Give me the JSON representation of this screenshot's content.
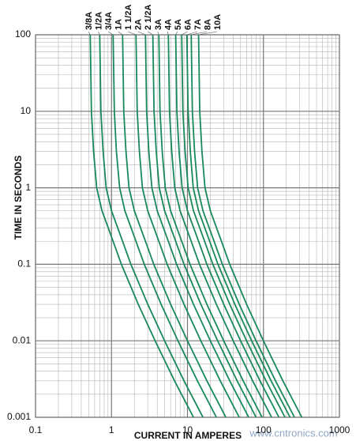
{
  "chart_data": {
    "type": "line",
    "x_label": "CURRENT IN AMPERES",
    "y_label": "TIME IN SECONDS",
    "watermark": "www.cntronics.com",
    "x_scale": "log",
    "y_scale": "log",
    "xlim": [
      0.1,
      1000
    ],
    "ylim": [
      0.001,
      100
    ],
    "xticks": [
      0.1,
      1,
      10,
      100,
      1000
    ],
    "yticks": [
      0.001,
      0.01,
      0.1,
      1,
      10,
      100
    ],
    "grid": true,
    "minor_grid": true,
    "series": [
      {
        "name": "3/8A",
        "color": "#19895c",
        "x": [
          0.525,
          0.544,
          0.581,
          0.638,
          0.75,
          1.05,
          1.35,
          2.25,
          3.75,
          6.75,
          12
        ],
        "values": [
          100,
          10,
          3,
          1,
          0.5,
          0.2,
          0.1,
          0.03,
          0.01,
          0.003,
          0.001
        ]
      },
      {
        "name": "1/2A",
        "color": "#19895c",
        "x": [
          0.7,
          0.725,
          0.775,
          0.85,
          1,
          1.4,
          1.8,
          3,
          5,
          9,
          16
        ],
        "values": [
          100,
          10,
          3,
          1,
          0.5,
          0.2,
          0.1,
          0.03,
          0.01,
          0.003,
          0.001
        ]
      },
      {
        "name": "3/4A",
        "color": "#19895c",
        "x": [
          1.05,
          1.09,
          1.16,
          1.28,
          1.5,
          2.1,
          2.7,
          4.5,
          7.5,
          13.5,
          24
        ],
        "values": [
          100,
          10,
          3,
          1,
          0.5,
          0.2,
          0.1,
          0.03,
          0.01,
          0.003,
          0.001
        ]
      },
      {
        "name": "1A",
        "color": "#19895c",
        "x": [
          1.4,
          1.45,
          1.55,
          1.7,
          2,
          2.8,
          3.6,
          6,
          10,
          18,
          32
        ],
        "values": [
          100,
          10,
          3,
          1,
          0.5,
          0.2,
          0.1,
          0.03,
          0.01,
          0.003,
          0.001
        ]
      },
      {
        "name": "1 1/2A",
        "color": "#19895c",
        "x": [
          2.1,
          2.18,
          2.33,
          2.55,
          3,
          4.2,
          5.4,
          9,
          15,
          27,
          48
        ],
        "values": [
          100,
          10,
          3,
          1,
          0.5,
          0.2,
          0.1,
          0.03,
          0.01,
          0.003,
          0.001
        ]
      },
      {
        "name": "2A",
        "color": "#19895c",
        "x": [
          2.8,
          2.9,
          3.1,
          3.4,
          4,
          5.6,
          7.2,
          12,
          20,
          36,
          64
        ],
        "values": [
          100,
          10,
          3,
          1,
          0.5,
          0.2,
          0.1,
          0.03,
          0.01,
          0.003,
          0.001
        ]
      },
      {
        "name": "2 1/2A",
        "color": "#19895c",
        "x": [
          3.5,
          3.63,
          3.88,
          4.25,
          5,
          7,
          9,
          15,
          25,
          45,
          80
        ],
        "values": [
          100,
          10,
          3,
          1,
          0.5,
          0.2,
          0.1,
          0.03,
          0.01,
          0.003,
          0.001
        ]
      },
      {
        "name": "3A",
        "color": "#19895c",
        "x": [
          4.2,
          4.35,
          4.65,
          5.1,
          6,
          8.4,
          10.8,
          18,
          30,
          54,
          96
        ],
        "values": [
          100,
          10,
          3,
          1,
          0.5,
          0.2,
          0.1,
          0.03,
          0.01,
          0.003,
          0.001
        ]
      },
      {
        "name": "4A",
        "color": "#19895c",
        "x": [
          5.6,
          5.8,
          6.2,
          6.8,
          8,
          11.2,
          14.4,
          24,
          40,
          72,
          128
        ],
        "values": [
          100,
          10,
          3,
          1,
          0.5,
          0.2,
          0.1,
          0.03,
          0.01,
          0.003,
          0.001
        ]
      },
      {
        "name": "5A",
        "color": "#19895c",
        "x": [
          7,
          7.25,
          7.75,
          8.5,
          10,
          14,
          18,
          30,
          50,
          90,
          160
        ],
        "values": [
          100,
          10,
          3,
          1,
          0.5,
          0.2,
          0.1,
          0.03,
          0.01,
          0.003,
          0.001
        ]
      },
      {
        "name": "6A",
        "color": "#19895c",
        "x": [
          8.4,
          8.7,
          9.3,
          10.2,
          12,
          16.8,
          21.6,
          36,
          60,
          108,
          192
        ],
        "values": [
          100,
          10,
          3,
          1,
          0.5,
          0.2,
          0.1,
          0.03,
          0.01,
          0.003,
          0.001
        ]
      },
      {
        "name": "7A",
        "color": "#19895c",
        "x": [
          9.8,
          10.2,
          10.9,
          11.9,
          14,
          19.6,
          25.2,
          42,
          70,
          126,
          224
        ],
        "values": [
          100,
          10,
          3,
          1,
          0.5,
          0.2,
          0.1,
          0.03,
          0.01,
          0.003,
          0.001
        ]
      },
      {
        "name": "8A",
        "color": "#19895c",
        "x": [
          11.2,
          11.6,
          12.4,
          13.6,
          16,
          22.4,
          28.8,
          48,
          80,
          144,
          256
        ],
        "values": [
          100,
          10,
          3,
          1,
          0.5,
          0.2,
          0.1,
          0.03,
          0.01,
          0.003,
          0.001
        ]
      },
      {
        "name": "10A",
        "color": "#19895c",
        "x": [
          14,
          14.5,
          15.5,
          17,
          20,
          28,
          36,
          60,
          100,
          180,
          320
        ],
        "values": [
          100,
          10,
          3,
          1,
          0.5,
          0.2,
          0.1,
          0.03,
          0.01,
          0.003,
          0.001
        ]
      }
    ]
  }
}
